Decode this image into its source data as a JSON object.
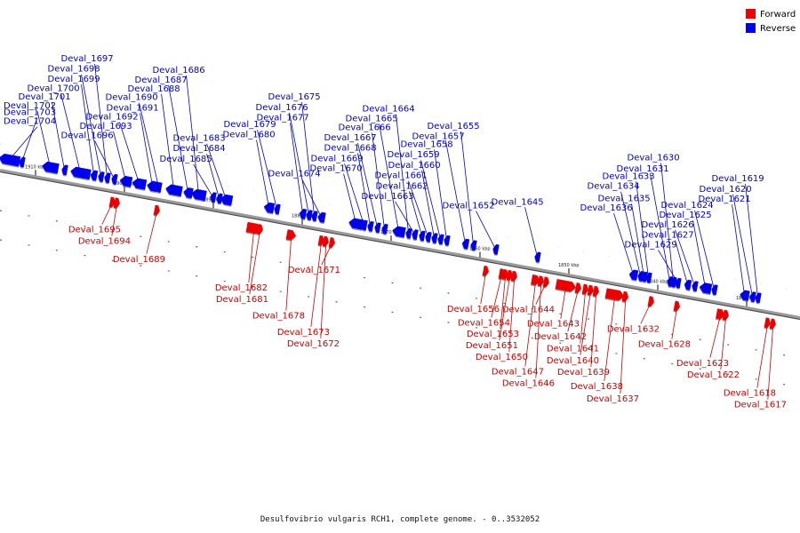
{
  "caption": "Desulfovibrio vulgaris RCH1, complete genome. - 0..3532052",
  "legend": {
    "forward": "Forward",
    "reverse": "Reverse"
  },
  "colors": {
    "forward": "#ee0000",
    "reverse": "#0000ee",
    "label_forward": "#cc0000",
    "label_reverse": "#0000cc",
    "axis": "#777777"
  },
  "ticks": [
    {
      "label": "1910 kbp",
      "kbp": 1910
    },
    {
      "label": "1900 kbp",
      "kbp": 1900
    },
    {
      "label": "1890 kbp",
      "kbp": 1890
    },
    {
      "label": "1880 kbp",
      "kbp": 1880
    },
    {
      "label": "1870 kbp",
      "kbp": 1870
    },
    {
      "label": "1860 kbp",
      "kbp": 1860
    },
    {
      "label": "1850 kbp",
      "kbp": 1850
    },
    {
      "label": "1840 kbp",
      "kbp": 1840
    },
    {
      "label": "1830 kbp",
      "kbp": 1830
    }
  ],
  "genes": [
    {
      "id": "Deval_1704",
      "strand": "reverse",
      "kbp": 1913.2,
      "span": 2.3
    },
    {
      "id": "Deval_1703",
      "strand": "reverse",
      "kbp": 1911.8,
      "span": 0.5
    },
    {
      "id": "Deval_1702",
      "strand": "reverse",
      "kbp": 1908.6,
      "span": 1.8
    },
    {
      "id": "Deval_1701",
      "strand": "reverse",
      "kbp": 1907.0,
      "span": 0.6
    },
    {
      "id": "Deval_1700",
      "strand": "reverse",
      "kbp": 1905.2,
      "span": 2.2
    },
    {
      "id": "Deval_1699",
      "strand": "reverse",
      "kbp": 1903.7,
      "span": 0.7
    },
    {
      "id": "Deval_1698",
      "strand": "reverse",
      "kbp": 1902.9,
      "span": 0.6
    },
    {
      "id": "Deval_1697",
      "strand": "reverse",
      "kbp": 1902.2,
      "span": 0.6
    },
    {
      "id": "Deval_1696",
      "strand": "reverse",
      "kbp": 1901.4,
      "span": 0.5
    },
    {
      "id": "Deval_1695",
      "strand": "forward",
      "kbp": 1901.1,
      "span": 0.4
    },
    {
      "id": "Deval_1694",
      "strand": "forward",
      "kbp": 1900.6,
      "span": 0.4
    },
    {
      "id": "Deval_1693",
      "strand": "reverse",
      "kbp": 1900.1,
      "span": 1.3
    },
    {
      "id": "Deval_1692",
      "strand": "reverse",
      "kbp": 1898.6,
      "span": 1.5
    },
    {
      "id": "Deval_1691",
      "strand": "reverse",
      "kbp": 1897.1,
      "span": 1.2
    },
    {
      "id": "Deval_1690",
      "strand": "reverse",
      "kbp": 1896.4,
      "span": 0.5
    },
    {
      "id": "Deval_1689",
      "strand": "forward",
      "kbp": 1896.1,
      "span": 0.5
    },
    {
      "id": "Deval_1688",
      "strand": "reverse",
      "kbp": 1894.7,
      "span": 1.8
    },
    {
      "id": "Deval_1687",
      "strand": "reverse",
      "kbp": 1893.1,
      "span": 1.0
    },
    {
      "id": "Deval_1686",
      "strand": "reverse",
      "kbp": 1891.9,
      "span": 1.6
    },
    {
      "id": "Deval_1685",
      "strand": "reverse",
      "kbp": 1890.3,
      "span": 0.6
    },
    {
      "id": "Deval_1684",
      "strand": "reverse",
      "kbp": 1889.6,
      "span": 0.4
    },
    {
      "id": "Deval_1683",
      "strand": "reverse",
      "kbp": 1888.8,
      "span": 1.3
    },
    {
      "id": "Deval_1682",
      "strand": "forward",
      "kbp": 1885.2,
      "span": 1.6
    },
    {
      "id": "Deval_1681",
      "strand": "forward",
      "kbp": 1884.5,
      "span": 0.4
    },
    {
      "id": "Deval_1680",
      "strand": "reverse",
      "kbp": 1884.0,
      "span": 1.1
    },
    {
      "id": "Deval_1679",
      "strand": "reverse",
      "kbp": 1883.1,
      "span": 0.4
    },
    {
      "id": "Deval_1678",
      "strand": "forward",
      "kbp": 1881.0,
      "span": 1.0
    },
    {
      "id": "Deval_1677",
      "strand": "reverse",
      "kbp": 1880.2,
      "span": 0.7
    },
    {
      "id": "Deval_1676",
      "strand": "reverse",
      "kbp": 1879.5,
      "span": 0.6
    },
    {
      "id": "Deval_1675",
      "strand": "reverse",
      "kbp": 1878.9,
      "span": 0.5
    },
    {
      "id": "Deval_1674",
      "strand": "reverse",
      "kbp": 1878.1,
      "span": 0.8
    },
    {
      "id": "Deval_1673",
      "strand": "forward",
      "kbp": 1877.6,
      "span": 0.4
    },
    {
      "id": "Deval_1672",
      "strand": "forward",
      "kbp": 1877.1,
      "span": 0.4
    },
    {
      "id": "Deval_1671",
      "strand": "forward",
      "kbp": 1876.4,
      "span": 0.5
    },
    {
      "id": "Deval_1670",
      "strand": "reverse",
      "kbp": 1874.2,
      "span": 1.6
    },
    {
      "id": "Deval_1669",
      "strand": "reverse",
      "kbp": 1873.3,
      "span": 0.6
    },
    {
      "id": "Deval_1668",
      "strand": "reverse",
      "kbp": 1872.6,
      "span": 0.6
    },
    {
      "id": "Deval_1667",
      "strand": "reverse",
      "kbp": 1871.8,
      "span": 0.6
    },
    {
      "id": "Deval_1666",
      "strand": "reverse",
      "kbp": 1871.0,
      "span": 0.6
    },
    {
      "id": "Deval_1665",
      "strand": "reverse",
      "kbp": 1869.4,
      "span": 1.4
    },
    {
      "id": "Deval_1664",
      "strand": "reverse",
      "kbp": 1868.3,
      "span": 0.6
    },
    {
      "id": "Deval_1663",
      "strand": "reverse",
      "kbp": 1867.6,
      "span": 0.6
    },
    {
      "id": "Deval_1662",
      "strand": "reverse",
      "kbp": 1866.8,
      "span": 0.6
    },
    {
      "id": "Deval_1661",
      "strand": "reverse",
      "kbp": 1866.1,
      "span": 0.6
    },
    {
      "id": "Deval_1660",
      "strand": "reverse",
      "kbp": 1865.4,
      "span": 0.5
    },
    {
      "id": "Deval_1659",
      "strand": "reverse",
      "kbp": 1864.7,
      "span": 0.5
    },
    {
      "id": "Deval_1658",
      "strand": "reverse",
      "kbp": 1864.0,
      "span": 0.5
    },
    {
      "id": "Deval_1657",
      "strand": "reverse",
      "kbp": 1861.9,
      "span": 0.7
    },
    {
      "id": "Deval_1656",
      "strand": "forward",
      "kbp": 1859.1,
      "span": 0.6
    },
    {
      "id": "Deval_1655",
      "strand": "reverse",
      "kbp": 1861.0,
      "span": 0.5
    },
    {
      "id": "Deval_1654",
      "strand": "forward",
      "kbp": 1857.3,
      "span": 0.4
    },
    {
      "id": "Deval_1653",
      "strand": "forward",
      "kbp": 1856.9,
      "span": 0.4
    },
    {
      "id": "Deval_1652",
      "strand": "reverse",
      "kbp": 1858.5,
      "span": 0.4
    },
    {
      "id": "Deval_1651",
      "strand": "forward",
      "kbp": 1856.4,
      "span": 0.4
    },
    {
      "id": "Deval_1650",
      "strand": "forward",
      "kbp": 1855.9,
      "span": 0.4
    },
    {
      "id": "Deval_1647",
      "strand": "forward",
      "kbp": 1853.5,
      "span": 0.9
    },
    {
      "id": "Deval_1646",
      "strand": "forward",
      "kbp": 1852.9,
      "span": 0.4
    },
    {
      "id": "Deval_1645",
      "strand": "reverse",
      "kbp": 1853.8,
      "span": 0.4
    },
    {
      "id": "Deval_1644",
      "strand": "forward",
      "kbp": 1852.3,
      "span": 0.5
    },
    {
      "id": "Deval_1643",
      "strand": "forward",
      "kbp": 1850.1,
      "span": 2.2
    },
    {
      "id": "Deval_1642",
      "strand": "forward",
      "kbp": 1848.7,
      "span": 0.6
    },
    {
      "id": "Deval_1641",
      "strand": "forward",
      "kbp": 1847.9,
      "span": 0.5
    },
    {
      "id": "Deval_1640",
      "strand": "forward",
      "kbp": 1847.3,
      "span": 0.4
    },
    {
      "id": "Deval_1639",
      "strand": "forward",
      "kbp": 1846.7,
      "span": 0.4
    },
    {
      "id": "Deval_1638",
      "strand": "forward",
      "kbp": 1844.6,
      "span": 2.0
    },
    {
      "id": "Deval_1637",
      "strand": "forward",
      "kbp": 1843.4,
      "span": 0.6
    },
    {
      "id": "Deval_1636",
      "strand": "reverse",
      "kbp": 1843.0,
      "span": 0.9
    },
    {
      "id": "Deval_1635",
      "strand": "reverse",
      "kbp": 1841.8,
      "span": 0.4
    },
    {
      "id": "Deval_1634",
      "strand": "reverse",
      "kbp": 1842.2,
      "span": 0.4
    },
    {
      "id": "Deval_1633",
      "strand": "reverse",
      "kbp": 1841.3,
      "span": 0.4
    },
    {
      "id": "Deval_1632",
      "strand": "forward",
      "kbp": 1840.5,
      "span": 0.6
    },
    {
      "id": "Deval_1631",
      "strand": "reverse",
      "kbp": 1838.9,
      "span": 0.4
    },
    {
      "id": "Deval_1630",
      "strand": "reverse",
      "kbp": 1838.5,
      "span": 0.4
    },
    {
      "id": "Deval_1629",
      "strand": "reverse",
      "kbp": 1838.0,
      "span": 0.4
    },
    {
      "id": "Deval_1628",
      "strand": "forward",
      "kbp": 1837.6,
      "span": 0.6
    },
    {
      "id": "Deval_1627",
      "strand": "reverse",
      "kbp": 1836.9,
      "span": 0.7
    },
    {
      "id": "Deval_1626",
      "strand": "reverse",
      "kbp": 1836.1,
      "span": 0.6
    },
    {
      "id": "Deval_1625",
      "strand": "reverse",
      "kbp": 1834.9,
      "span": 1.3
    },
    {
      "id": "Deval_1624",
      "strand": "reverse",
      "kbp": 1833.9,
      "span": 0.5
    },
    {
      "id": "Deval_1623",
      "strand": "forward",
      "kbp": 1832.7,
      "span": 0.9
    },
    {
      "id": "Deval_1622",
      "strand": "forward",
      "kbp": 1832.1,
      "span": 0.4
    },
    {
      "id": "Deval_1621",
      "strand": "reverse",
      "kbp": 1830.5,
      "span": 1.0
    },
    {
      "id": "Deval_1620",
      "strand": "reverse",
      "kbp": 1829.6,
      "span": 0.6
    },
    {
      "id": "Deval_1619",
      "strand": "reverse",
      "kbp": 1829.0,
      "span": 0.5
    },
    {
      "id": "Deval_1618",
      "strand": "forward",
      "kbp": 1827.4,
      "span": 0.6
    },
    {
      "id": "Deval_1617",
      "strand": "forward",
      "kbp": 1826.8,
      "span": 0.5
    }
  ]
}
